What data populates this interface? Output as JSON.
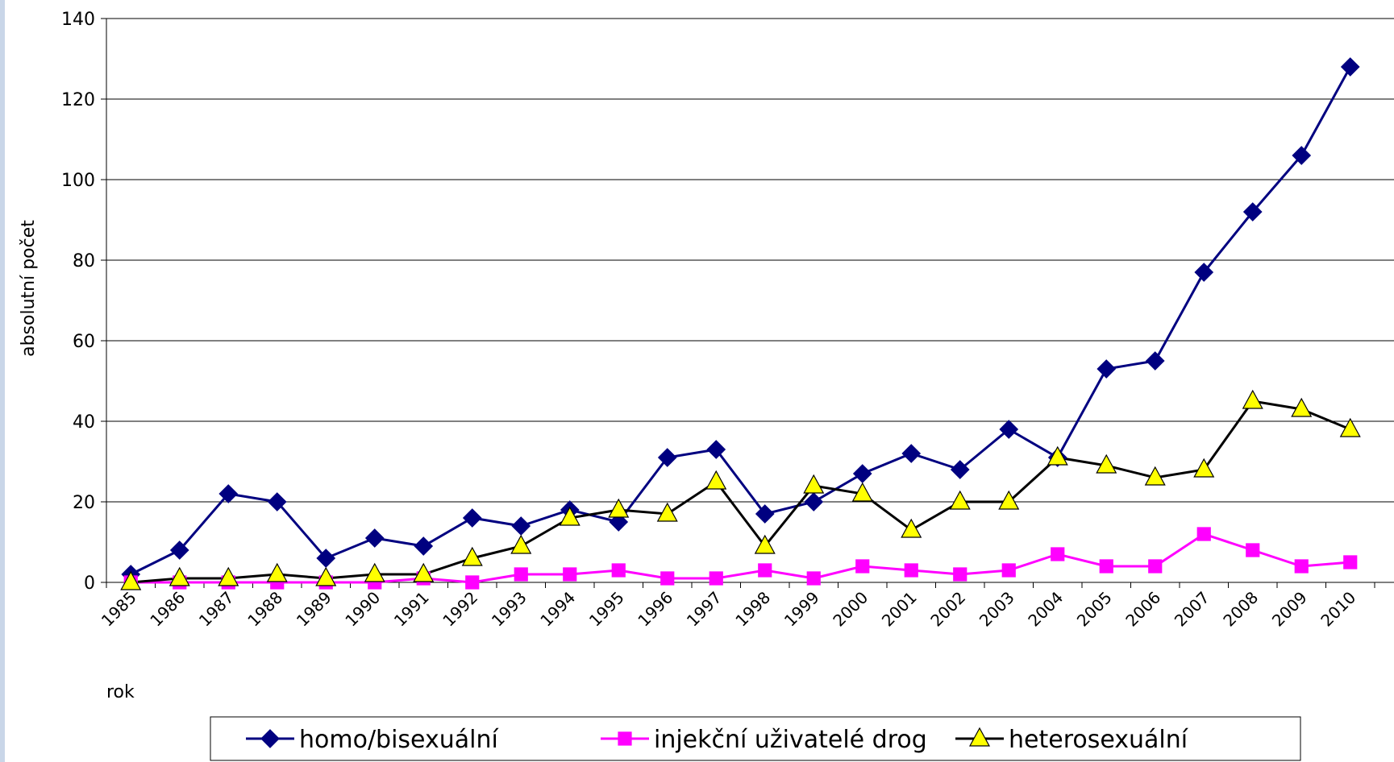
{
  "chart_data": {
    "type": "line",
    "ylabel": "absolutní počet",
    "xlabel": "rok",
    "categories": [
      "1985",
      "1986",
      "1987",
      "1988",
      "1989",
      "1990",
      "1991",
      "1992",
      "1993",
      "1994",
      "1995",
      "1996",
      "1997",
      "1998",
      "1999",
      "2000",
      "2001",
      "2002",
      "2003",
      "2004",
      "2005",
      "2006",
      "2007",
      "2008",
      "2009",
      "2010"
    ],
    "series": [
      {
        "name": "homo/bisexuální",
        "color": "#000080",
        "marker": "diamond",
        "marker_color": "#000080",
        "values": [
          2,
          8,
          22,
          20,
          6,
          11,
          9,
          16,
          14,
          18,
          15,
          31,
          33,
          17,
          20,
          27,
          32,
          28,
          38,
          31,
          53,
          55,
          77,
          92,
          106,
          128
        ]
      },
      {
        "name": "injekční uživatelé drog",
        "color": "#ff00ff",
        "marker": "square",
        "marker_color": "#ff00ff",
        "values": [
          0,
          0,
          0,
          0,
          0,
          0,
          1,
          0,
          2,
          2,
          3,
          1,
          1,
          3,
          1,
          4,
          3,
          2,
          3,
          7,
          4,
          4,
          12,
          8,
          4,
          5
        ]
      },
      {
        "name": "heterosexuální",
        "color": "#000000",
        "marker": "triangle",
        "marker_color": "#ffff00",
        "values": [
          0,
          1,
          1,
          2,
          1,
          2,
          2,
          6,
          9,
          16,
          18,
          17,
          25,
          9,
          24,
          22,
          13,
          20,
          20,
          31,
          29,
          26,
          28,
          45,
          43,
          38
        ]
      }
    ],
    "ylim": [
      0,
      140
    ],
    "yticks": [
      0,
      20,
      40,
      60,
      80,
      100,
      120,
      140
    ],
    "grid": true
  }
}
